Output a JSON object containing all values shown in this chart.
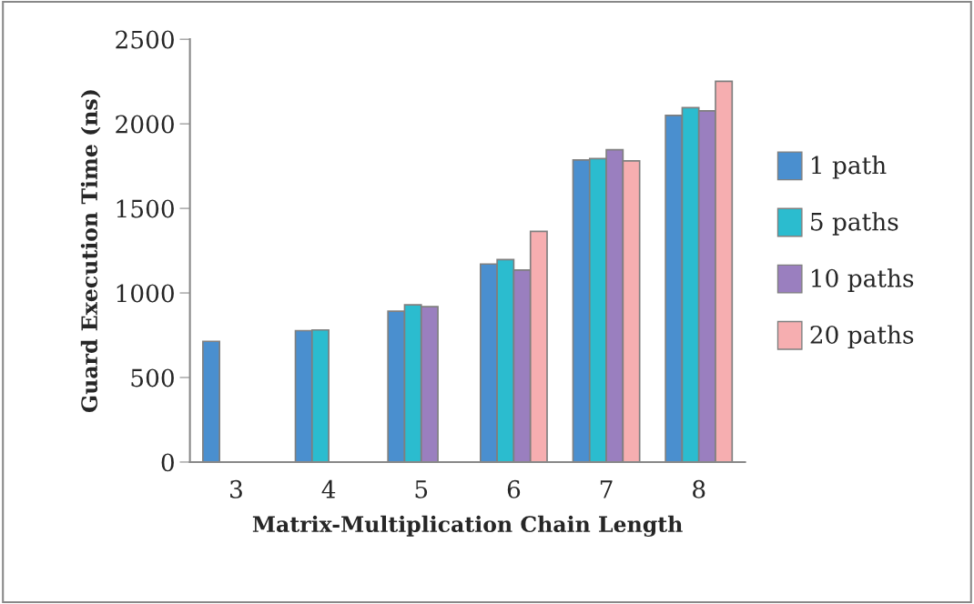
{
  "chart_data": {
    "type": "bar",
    "xlabel": "Matrix-Multiplication Chain Length",
    "ylabel": "Guard Execution Time (ns)",
    "categories": [
      "3",
      "4",
      "5",
      "6",
      "7",
      "8"
    ],
    "series": [
      {
        "name": "1 path",
        "color": "#4a8fcf",
        "values": [
          714,
          777,
          892,
          1171,
          1786,
          2050
        ]
      },
      {
        "name": "5 paths",
        "color": "#2bbccf",
        "values": [
          null,
          781,
          930,
          1197,
          1794,
          2095
        ]
      },
      {
        "name": "10 paths",
        "color": "#9a7fbf",
        "values": [
          null,
          null,
          919,
          1135,
          1847,
          2077
        ]
      },
      {
        "name": "20 paths",
        "color": "#f6aeb0",
        "values": [
          null,
          null,
          null,
          1364,
          1781,
          2251
        ]
      }
    ],
    "ylim": [
      0,
      2500
    ],
    "yticks": [
      0,
      500,
      1000,
      1500,
      2000,
      2500
    ],
    "grid": false,
    "legend": "right"
  }
}
